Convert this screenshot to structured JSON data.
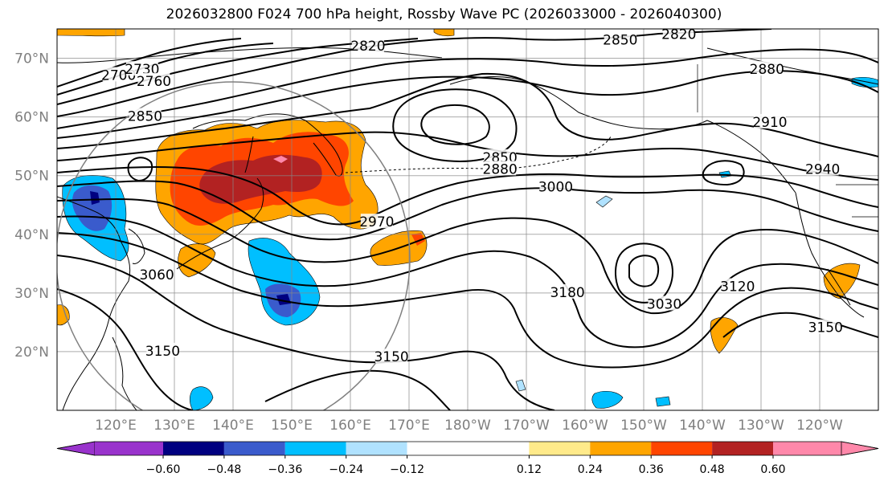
{
  "title": "2026032800 F024 700 hPa height, Rossby Wave PC (2026033000 - 2026040300)",
  "map": {
    "projection": "PlateCarree",
    "lon_range": [
      110,
      250
    ],
    "lat_range": [
      10,
      75
    ],
    "lat_ticks": [
      {
        "lat": 70,
        "label": "70°N"
      },
      {
        "lat": 60,
        "label": "60°N"
      },
      {
        "lat": 50,
        "label": "50°N"
      },
      {
        "lat": 40,
        "label": "40°N"
      },
      {
        "lat": 30,
        "label": "30°N"
      },
      {
        "lat": 20,
        "label": "20°N"
      }
    ],
    "lon_ticks": [
      {
        "lon": 120,
        "label": "120°E"
      },
      {
        "lon": 130,
        "label": "130°E"
      },
      {
        "lon": 140,
        "label": "140°E"
      },
      {
        "lon": 150,
        "label": "150°E"
      },
      {
        "lon": 160,
        "label": "160°E"
      },
      {
        "lon": 170,
        "label": "170°E"
      },
      {
        "lon": 180,
        "label": "180°W"
      },
      {
        "lon": 190,
        "label": "170°W"
      },
      {
        "lon": 200,
        "label": "160°W"
      },
      {
        "lon": 210,
        "label": "150°W"
      },
      {
        "lon": 220,
        "label": "140°W"
      },
      {
        "lon": 230,
        "label": "130°W"
      },
      {
        "lon": 240,
        "label": "120°W"
      }
    ],
    "grid": true,
    "contour_labels": [
      {
        "text": "2820",
        "lon": 163,
        "lat": 72
      },
      {
        "text": "2850",
        "lon": 206,
        "lat": 73
      },
      {
        "text": "2820",
        "lon": 216,
        "lat": 74
      },
      {
        "text": "2700",
        "lon": 120.5,
        "lat": 67
      },
      {
        "text": "2730",
        "lon": 124.5,
        "lat": 68
      },
      {
        "text": "2760",
        "lon": 126.5,
        "lat": 66
      },
      {
        "text": "2880",
        "lon": 231,
        "lat": 68
      },
      {
        "text": "2850",
        "lon": 125,
        "lat": 60
      },
      {
        "text": "2910",
        "lon": 231.5,
        "lat": 59
      },
      {
        "text": "2850",
        "lon": 185.5,
        "lat": 53
      },
      {
        "text": "2880",
        "lon": 185.5,
        "lat": 51
      },
      {
        "text": "2940",
        "lon": 240.5,
        "lat": 51
      },
      {
        "text": "3000",
        "lon": 195,
        "lat": 48
      },
      {
        "text": "2970",
        "lon": 164.5,
        "lat": 42
      },
      {
        "text": "3060",
        "lon": 127,
        "lat": 33
      },
      {
        "text": "3180",
        "lon": 197,
        "lat": 30
      },
      {
        "text": "3030",
        "lon": 213.5,
        "lat": 28
      },
      {
        "text": "3120",
        "lon": 226,
        "lat": 31
      },
      {
        "text": "3150",
        "lon": 128,
        "lat": 20
      },
      {
        "text": "3150",
        "lon": 167,
        "lat": 19
      },
      {
        "text": "3150",
        "lon": 241,
        "lat": 24
      }
    ],
    "contour_label_colors": "#000000"
  },
  "colorbar": {
    "colors": [
      "#9933cc",
      "#000080",
      "#3a5bcc",
      "#00bfff",
      "#b0e2ff",
      "#ffffff",
      "#ffea8a",
      "#ffa500",
      "#ff4500",
      "#b22222",
      "#ff88aa"
    ],
    "tick_values": [
      -0.6,
      -0.48,
      -0.36,
      -0.24,
      -0.12,
      0.12,
      0.24,
      0.36,
      0.48,
      0.6
    ],
    "tick_labels": [
      "−0.60",
      "−0.48",
      "−0.36",
      "−0.24",
      "−0.12",
      "0.12",
      "0.24",
      "0.36",
      "0.48",
      "0.60"
    ],
    "extend": "both"
  }
}
